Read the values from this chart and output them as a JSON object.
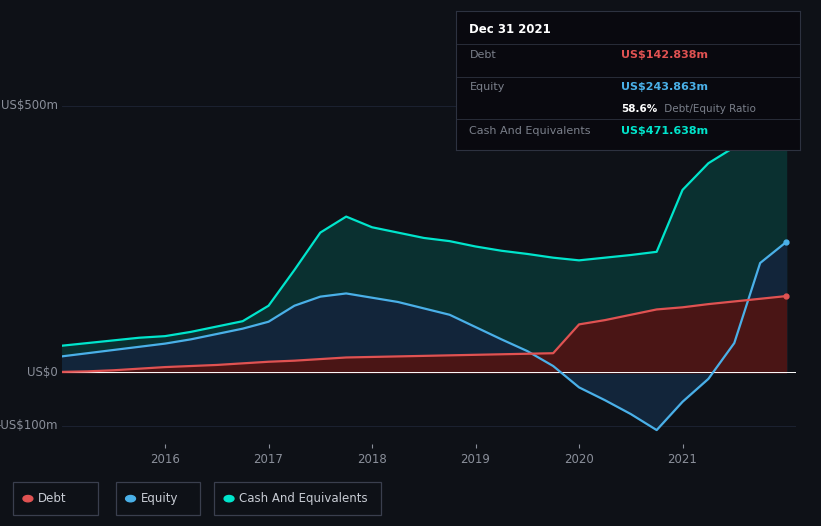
{
  "background_color": "#0e1117",
  "plot_bg_color": "#0e1117",
  "grid_color": "#1e2535",
  "debt_color": "#e05252",
  "equity_color": "#4ab0e8",
  "cash_color": "#00e5cc",
  "debt_fill": "#4a1515",
  "equity_fill": "#12253a",
  "cash_fill": "#0a3030",
  "ylabel_top": "US$500m",
  "ylabel_zero": "US$0",
  "ylabel_neg": "-US$100m",
  "x_ticks": [
    "2016",
    "2017",
    "2018",
    "2019",
    "2020",
    "2021"
  ],
  "x_tick_pos": [
    2016,
    2017,
    2018,
    2019,
    2020,
    2021
  ],
  "tooltip_date": "Dec 31 2021",
  "tooltip_debt_label": "Debt",
  "tooltip_debt_value": "US$142.838m",
  "tooltip_equity_label": "Equity",
  "tooltip_equity_value": "US$243.863m",
  "tooltip_ratio_bold": "58.6%",
  "tooltip_ratio_rest": " Debt/Equity Ratio",
  "tooltip_cash_label": "Cash And Equivalents",
  "tooltip_cash_value": "US$471.638m",
  "legend_labels": [
    "Debt",
    "Equity",
    "Cash And Equivalents"
  ],
  "years": [
    2015.0,
    2015.25,
    2015.5,
    2015.75,
    2016.0,
    2016.25,
    2016.5,
    2016.75,
    2017.0,
    2017.25,
    2017.5,
    2017.75,
    2018.0,
    2018.25,
    2018.5,
    2018.75,
    2019.0,
    2019.25,
    2019.5,
    2019.75,
    2020.0,
    2020.25,
    2020.5,
    2020.75,
    2021.0,
    2021.25,
    2021.5,
    2021.75,
    2022.0
  ],
  "debt": [
    1,
    2,
    4,
    7,
    10,
    12,
    14,
    17,
    20,
    22,
    25,
    28,
    29,
    30,
    31,
    32,
    33,
    34,
    35,
    36,
    90,
    98,
    108,
    118,
    122,
    128,
    133,
    138,
    143
  ],
  "equity": [
    30,
    36,
    42,
    48,
    54,
    62,
    72,
    82,
    95,
    125,
    142,
    148,
    140,
    132,
    120,
    108,
    85,
    62,
    40,
    12,
    -28,
    -52,
    -78,
    -108,
    -55,
    -12,
    55,
    205,
    244
  ],
  "cash": [
    50,
    55,
    60,
    65,
    68,
    76,
    86,
    96,
    125,
    192,
    262,
    292,
    272,
    262,
    252,
    246,
    236,
    228,
    222,
    215,
    210,
    215,
    220,
    226,
    342,
    392,
    422,
    452,
    472
  ],
  "xlim_left": 2015.0,
  "xlim_right": 2022.1,
  "ylim_bottom": -135,
  "ylim_top": 550
}
